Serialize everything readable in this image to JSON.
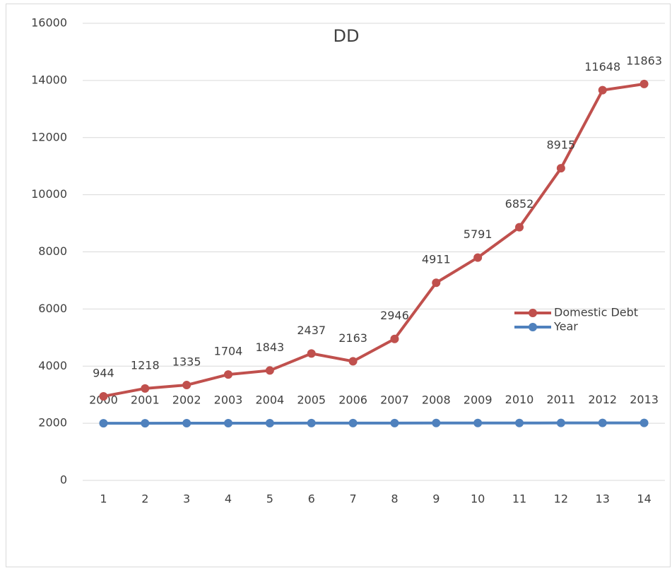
{
  "chart_data": {
    "type": "line",
    "stacked": true,
    "title": "DD",
    "categories": [
      "1",
      "2",
      "3",
      "4",
      "5",
      "6",
      "7",
      "8",
      "9",
      "10",
      "11",
      "12",
      "13",
      "14"
    ],
    "series": [
      {
        "name": "Year",
        "color": "#4f81bd",
        "values": [
          2000,
          2001,
          2002,
          2003,
          2004,
          2005,
          2006,
          2007,
          2008,
          2009,
          2010,
          2011,
          2012,
          2013
        ]
      },
      {
        "name": "Domestic Debt",
        "color": "#c0504d",
        "values": [
          944,
          1218,
          1335,
          1704,
          1843,
          2437,
          2163,
          2946,
          4911,
          5791,
          6852,
          8915,
          11648,
          11863
        ]
      }
    ],
    "ylim": [
      0,
      16000
    ],
    "yticks": [
      0,
      2000,
      4000,
      6000,
      8000,
      10000,
      12000,
      14000,
      16000
    ],
    "grid": true,
    "legend": "right"
  }
}
